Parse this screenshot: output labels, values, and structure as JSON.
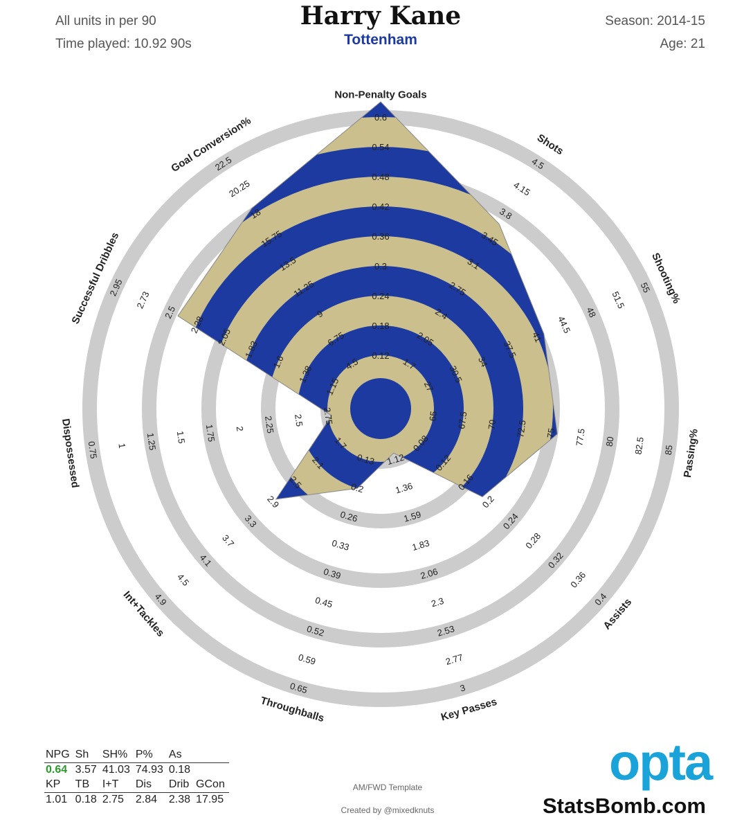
{
  "header": {
    "units": "All units in per 90",
    "time_played": "Time played: 10.92 90s",
    "player": "Harry Kane",
    "team": "Tottenham",
    "season": "Season: 2014-15",
    "age": "Age: 21"
  },
  "colors": {
    "fill_blue": "#1c3aa0",
    "fill_tan": "#cbbf8d",
    "ring_grey": "#cccccc",
    "accent_green": "#2a9b2a",
    "opta_blue": "#1aa3d9"
  },
  "chart_data": {
    "type": "radar",
    "axes": [
      {
        "label": "Non-Penalty Goals",
        "ticks": [
          "0.12",
          "0.18",
          "0.24",
          "0.3",
          "0.36",
          "0.42",
          "0.48",
          "0.54",
          "0.6"
        ],
        "value": 0.64,
        "value_label": "0.64"
      },
      {
        "label": "Shots",
        "ticks": [
          "1.7",
          "2.05",
          "2.4",
          "2.75",
          "3.1",
          "3.45",
          "3.8",
          "4.15",
          "4.5"
        ],
        "value": 3.57,
        "value_label": "3.57"
      },
      {
        "label": "Shooting%",
        "ticks": [
          "27",
          "30.5",
          "34",
          "37.5",
          "41",
          "44.5",
          "48",
          "51.5",
          "55"
        ],
        "value": 41.03,
        "value_label": "41.03"
      },
      {
        "label": "Passing%",
        "ticks": [
          "65",
          "67.5",
          "70",
          "72.5",
          "75",
          "77.5",
          "80",
          "82.5",
          "85"
        ],
        "value": 74.93,
        "value_label": "74.93"
      },
      {
        "label": "Assists",
        "ticks": [
          "0.08",
          "0.12",
          "0.16",
          "0.2",
          "0.24",
          "0.28",
          "0.32",
          "0.36",
          "0.4"
        ],
        "value": 0.18,
        "value_label": "0.18"
      },
      {
        "label": "Key Passes",
        "ticks": [
          "1.12",
          "1.36",
          "1.59",
          "1.83",
          "2.06",
          "2.3",
          "2.53",
          "2.77",
          "3"
        ],
        "value": 1.01,
        "value_label": "1.01"
      },
      {
        "label": "Throughballs",
        "ticks": [
          "0.13",
          "0.2",
          "0.26",
          "0.33",
          "0.39",
          "0.45",
          "0.52",
          "0.59",
          "0.65"
        ],
        "value": 0.18,
        "value_label": "0.18"
      },
      {
        "label": "Int+Tackles",
        "ticks": [
          "1.7",
          "2.1",
          "2.5",
          "2.9",
          "3.3",
          "3.7",
          "4.1",
          "4.5",
          "4.9"
        ],
        "value": 2.75,
        "value_label": "2.75"
      },
      {
        "label": "Dispossessed",
        "ticks": [
          "2.75",
          "2.5",
          "2.25",
          "2",
          "1.75",
          "1.5",
          "1.25",
          "1",
          "0.75"
        ],
        "value": 2.84,
        "value_label": "2.84"
      },
      {
        "label": "Successful Dribbles",
        "ticks": [
          "1.15",
          "1.38",
          "1.6",
          "1.83",
          "2.05",
          "2.28",
          "2.5",
          "2.73",
          "2.95"
        ],
        "value": 2.38,
        "value_label": "2.38"
      },
      {
        "label": "Goal Conversion%",
        "ticks": [
          "4.5",
          "6.75",
          "9",
          "11.25",
          "13.5",
          "15.75",
          "18",
          "20.25",
          "22.5"
        ],
        "value": 17.95,
        "value_label": "17.95"
      }
    ],
    "rings": 9
  },
  "stats_table": {
    "row1_headers": [
      "NPG",
      "Sh",
      "SH%",
      "P%",
      "As"
    ],
    "row1_values": [
      "0.64",
      "3.57",
      "41.03",
      "74.93",
      "0.18"
    ],
    "row2_headers": [
      "KP",
      "TB",
      "I+T",
      "Dis",
      "Drib",
      "GCon"
    ],
    "row2_values": [
      "1.01",
      "0.18",
      "2.75",
      "2.84",
      "2.38",
      "17.95"
    ]
  },
  "footer": {
    "template": "AM/FWD Template",
    "created_by": "Created by @mixedknuts",
    "opta": "opta",
    "statsbomb": "StatsBomb.com"
  }
}
